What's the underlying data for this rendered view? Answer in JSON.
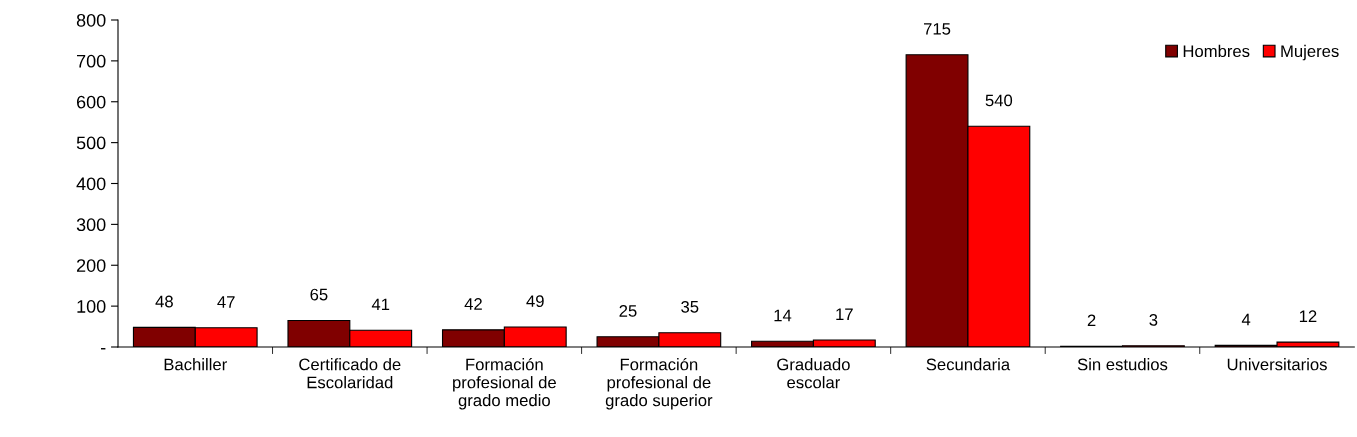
{
  "chart_data": {
    "type": "bar",
    "categories": [
      "Bachiller",
      "Certificado de\nEscolaridad",
      "Formación\nprofesional de\ngrado medio",
      "Formación\nprofesional de\ngrado superior",
      "Graduado\nescolar",
      "Secundaria",
      "Sin estudios",
      "Universitarios"
    ],
    "series": [
      {
        "name": "Hombres",
        "color": "#800000",
        "values": [
          48,
          65,
          42,
          25,
          14,
          715,
          2,
          4
        ]
      },
      {
        "name": "Mujeres",
        "color": "#ff0000",
        "values": [
          47,
          41,
          49,
          35,
          17,
          540,
          3,
          12
        ]
      }
    ],
    "ylim": [
      0,
      800
    ],
    "yticks": [
      {
        "value": 0,
        "label": "-"
      },
      100,
      200,
      300,
      400,
      500,
      600,
      700,
      800
    ],
    "grid": false,
    "legend": "top right",
    "data_labels": true
  }
}
